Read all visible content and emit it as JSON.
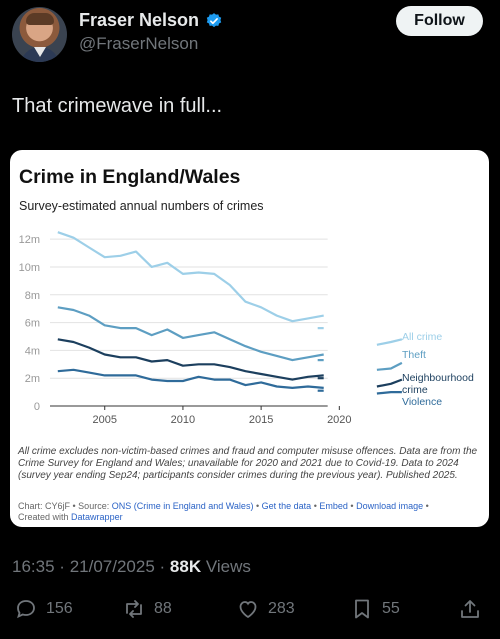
{
  "author": {
    "display_name": "Fraser Nelson",
    "handle": "@FraserNelson"
  },
  "follow_label": "Follow",
  "tweet_text": "That crimewave in full...",
  "chart_data": {
    "type": "line",
    "title": "Crime in England/Wales",
    "subtitle": "Survey-estimated annual numbers of crimes",
    "y_tick_labels": [
      "0",
      "2m",
      "4m",
      "6m",
      "8m",
      "10m",
      "12m"
    ],
    "y_ticks": [
      0,
      2,
      4,
      6,
      8,
      10,
      12
    ],
    "ylim": [
      0,
      12.8
    ],
    "x_tick_labels": [
      "2005",
      "2010",
      "2015",
      "2020"
    ],
    "x_ticks": [
      2005,
      2010,
      2015,
      2020
    ],
    "xlim": [
      2001.5,
      2024.2
    ],
    "x": [
      2002,
      2003,
      2004,
      2005,
      2006,
      2007,
      2008,
      2009,
      2010,
      2011,
      2012,
      2013,
      2014,
      2015,
      2016,
      2017,
      2018,
      2019
    ],
    "series": [
      {
        "name": "All crime",
        "color": "#9dcfe8",
        "values": [
          12.5,
          12.1,
          11.4,
          10.7,
          10.8,
          11.1,
          10.0,
          10.3,
          9.5,
          9.6,
          9.5,
          8.7,
          7.5,
          7.1,
          6.5,
          6.1,
          6.3,
          6.5
        ],
        "recent_x": [
          2022.4,
          2023.3,
          2024.0
        ],
        "recent_values": [
          4.4,
          4.6,
          4.8
        ],
        "end_value": 5.6
      },
      {
        "name": "Theft",
        "color": "#5d9ec2",
        "values": [
          7.1,
          6.9,
          6.5,
          5.8,
          5.6,
          5.6,
          5.1,
          5.5,
          4.9,
          5.1,
          5.3,
          4.8,
          4.3,
          3.9,
          3.6,
          3.3,
          3.5,
          3.7
        ],
        "recent_x": [
          2022.4,
          2023.3,
          2024.0
        ],
        "recent_values": [
          2.6,
          2.7,
          3.1
        ],
        "end_value": 3.3
      },
      {
        "name": "Neighbourhood crime",
        "name_lines": [
          "Neighbourhood",
          "crime"
        ],
        "color": "#1c3f5e",
        "values": [
          4.8,
          4.6,
          4.2,
          3.7,
          3.5,
          3.5,
          3.2,
          3.3,
          2.9,
          3.0,
          3.0,
          2.8,
          2.5,
          2.3,
          2.1,
          1.9,
          2.1,
          2.2
        ],
        "recent_x": [
          2022.4,
          2023.3,
          2024.0
        ],
        "recent_values": [
          1.4,
          1.6,
          1.9
        ],
        "end_value": 2.0
      },
      {
        "name": "Violence",
        "color": "#2f6b9a",
        "values": [
          2.5,
          2.6,
          2.4,
          2.2,
          2.2,
          2.2,
          1.9,
          1.8,
          1.8,
          2.1,
          1.9,
          1.9,
          1.5,
          1.7,
          1.4,
          1.3,
          1.4,
          1.3
        ],
        "recent_x": [
          2022.4,
          2023.3,
          2024.0
        ],
        "recent_values": [
          0.9,
          1.0,
          1.0
        ],
        "end_value": 1.1
      }
    ],
    "notes": "All crime excludes non-victim-based crimes and fraud and computer misuse offences. Data are from the Crime Survey for England and Wales; unavailable for 2020 and 2021 due to Covid-19. Data to 2024 (survey year ending Sep24; participants consider crimes during the previous year). Published 2025.",
    "footer": {
      "chart_id": "Chart: CY6jF",
      "source_label": "• Source:",
      "source_link": "ONS (Crime in England and Wales)",
      "get_data": "Get the data",
      "embed": "Embed",
      "download": "Download image",
      "created_prefix": "Created with",
      "created_link": "Datawrapper",
      "sep": "•"
    }
  },
  "meta": {
    "time": "16:35",
    "date": "21/07/2025",
    "sep": "·",
    "views_count": "88K",
    "views_label": "Views"
  },
  "actions": {
    "replies": "156",
    "reposts": "88",
    "likes": "283",
    "bookmarks": "55"
  }
}
